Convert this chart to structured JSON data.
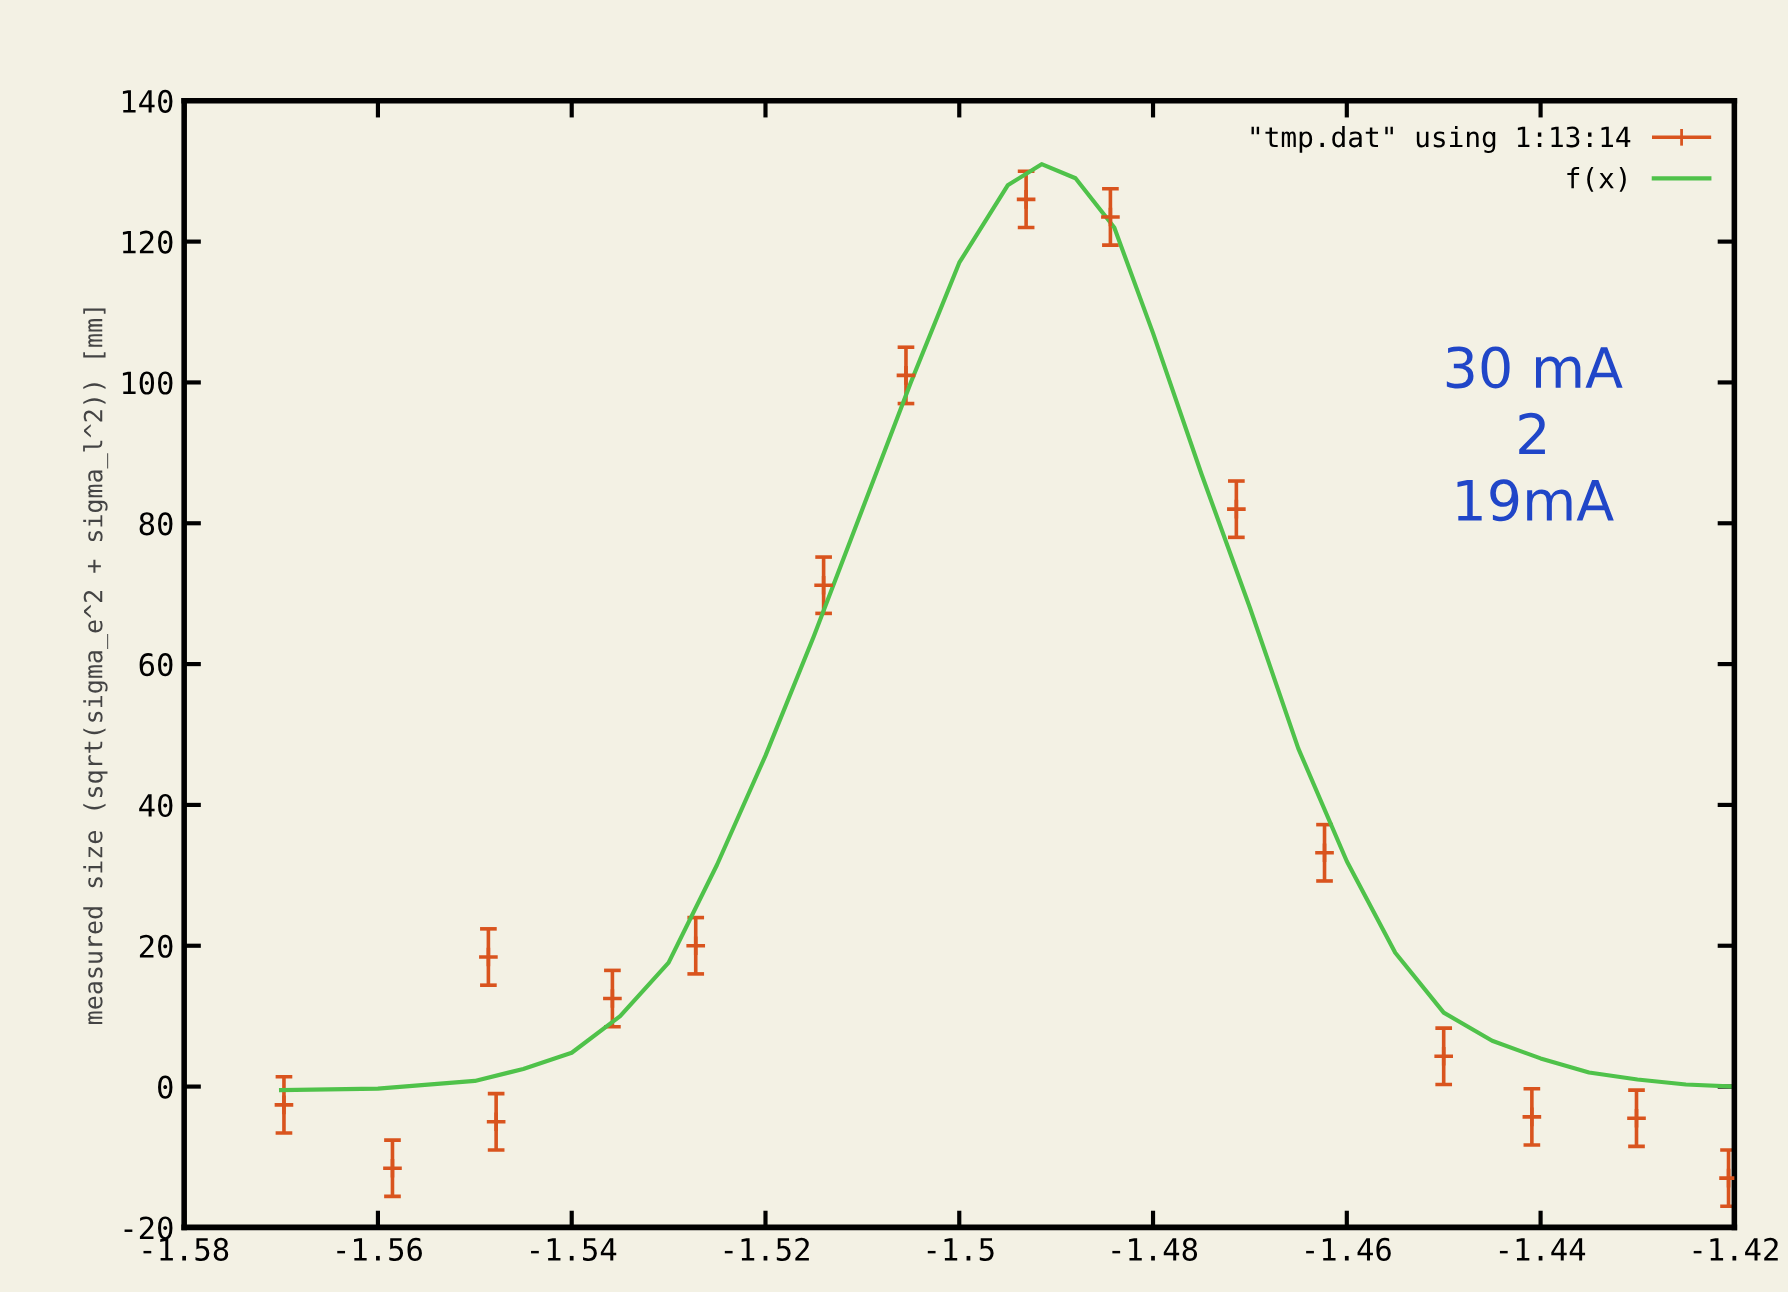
{
  "chart_data": {
    "type": "scatter",
    "ylabel": "measured size (sqrt(sigma_e^2 + sigma_l^2)) [mm]",
    "xlim": [
      -1.58,
      -1.42
    ],
    "xticks": [
      -1.58,
      -1.56,
      -1.54,
      -1.52,
      -1.5,
      -1.48,
      -1.46,
      -1.44,
      -1.42
    ],
    "ylim": [
      -20,
      140
    ],
    "yticks": [
      -20,
      0,
      20,
      40,
      60,
      80,
      100,
      120,
      140
    ],
    "grid": false,
    "legend": "top right",
    "annotations": [
      {
        "text": "30 mA\n2\n19mA"
      }
    ],
    "series": [
      {
        "name": "\"tmp.dat\" using 1:13:14",
        "color": "#d9541e",
        "marker": "cross",
        "x": [
          -1.5697,
          -1.5585,
          -1.5486,
          -1.5478,
          -1.5358,
          -1.5272,
          -1.514,
          -1.5055,
          -1.4931,
          -1.4844,
          -1.4714,
          -1.4623,
          -1.45,
          -1.4409,
          -1.4301,
          -1.4206
        ],
        "values": [
          -2.6,
          -11.6,
          18.4,
          -5,
          12.5,
          20,
          71.2,
          101,
          126,
          123.5,
          82,
          33.2,
          4.3,
          -4.3,
          -4.5,
          -13
        ],
        "errors": [
          4,
          4,
          4,
          4,
          4,
          4,
          4,
          4,
          4,
          4,
          4,
          4,
          4,
          4,
          4,
          4
        ]
      },
      {
        "name": "f(x)",
        "type": "line",
        "color": "#4fc24a",
        "marker": "none",
        "x": [
          -1.57,
          -1.56,
          -1.55,
          -1.545,
          -1.54,
          -1.535,
          -1.53,
          -1.525,
          -1.52,
          -1.515,
          -1.51,
          -1.505,
          -1.5,
          -1.495,
          -1.4915,
          -1.488,
          -1.484,
          -1.48,
          -1.475,
          -1.47,
          -1.465,
          -1.46,
          -1.455,
          -1.45,
          -1.445,
          -1.44,
          -1.435,
          -1.43,
          -1.425,
          -1.42
        ],
        "values": [
          -0.5,
          -0.3,
          0.8,
          2.5,
          4.8,
          10,
          17.6,
          31.5,
          47,
          64,
          82,
          100,
          117,
          128,
          131,
          129,
          122,
          107,
          87,
          68,
          48,
          32,
          19,
          10.5,
          6.5,
          4,
          2,
          1,
          0.3,
          0
        ]
      }
    ]
  }
}
